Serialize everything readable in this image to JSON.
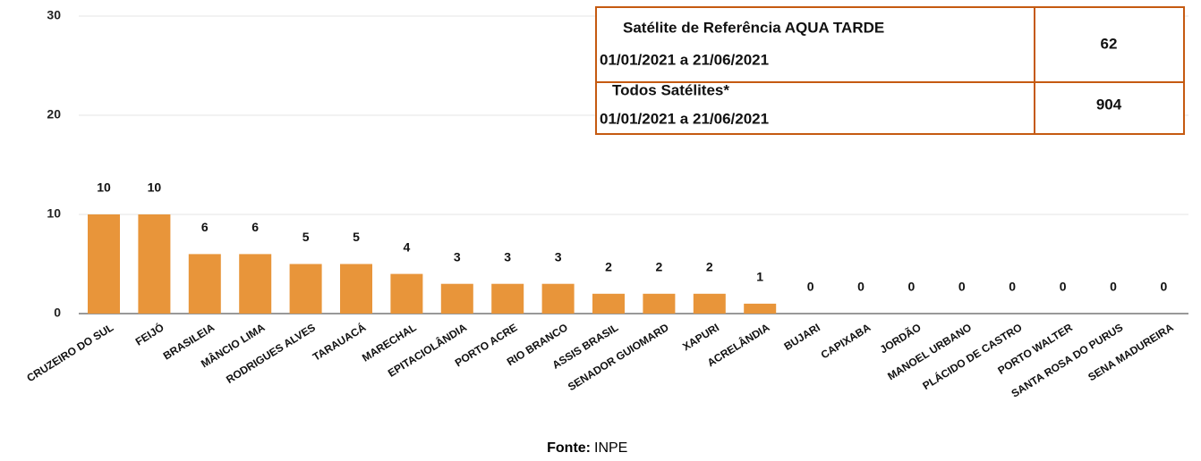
{
  "chart_data": {
    "type": "bar",
    "categories": [
      "CRUZEIRO DO SUL",
      "FEIJÓ",
      "BRASILEIA",
      "MÂNCIO LIMA",
      "RODRIGUES ALVES",
      "TARAUACÁ",
      "MARECHAL",
      "EPITACIOLÂNDIA",
      "PORTO ACRE",
      "RIO BRANCO",
      "ASSIS BRASIL",
      "SENADOR GUIOMARD",
      "XAPURI",
      "ACRELÂNDIA",
      "BUJARI",
      "CAPIXABA",
      "JORDÃO",
      "MANOEL URBANO",
      "PLÁCIDO DE CASTRO",
      "PORTO WALTER",
      "SANTA ROSA DO PURUS",
      "SENA MADUREIRA"
    ],
    "values": [
      10,
      10,
      6,
      6,
      5,
      5,
      4,
      3,
      3,
      3,
      2,
      2,
      2,
      1,
      0,
      0,
      0,
      0,
      0,
      0,
      0,
      0
    ],
    "color": "#e8953a",
    "ylim": [
      0,
      30
    ],
    "yticks": [
      0,
      10,
      20,
      30
    ],
    "grid": true
  },
  "info_table": {
    "rows": [
      {
        "label": "Satélite de Referência AQUA TARDE",
        "period": "01/01/2021 a 21/06/2021",
        "value": "62"
      },
      {
        "label": "Todos Satélites*",
        "period": "01/01/2021 a 21/06/2021",
        "value": "904"
      }
    ]
  },
  "source": {
    "label": "Fonte:",
    "text": "INPE"
  }
}
